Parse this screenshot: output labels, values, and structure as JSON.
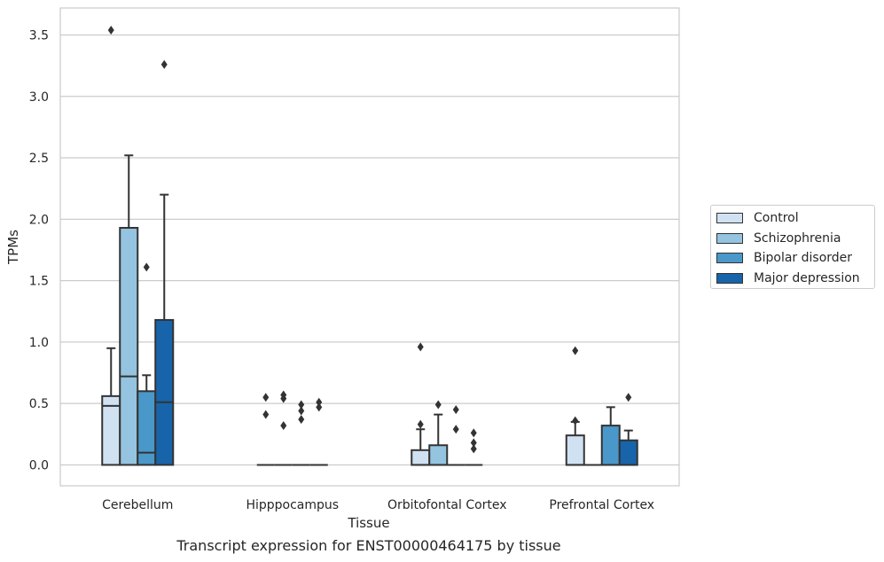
{
  "caption": "Transcript expression for ENST00000464175 by tissue",
  "chart_data": {
    "type": "boxplot",
    "xlabel": "Tissue",
    "ylabel": "TPMs",
    "ylim": [
      -0.17,
      3.72
    ],
    "yticks": [
      0.0,
      0.5,
      1.0,
      1.5,
      2.0,
      2.5,
      3.0,
      3.5
    ],
    "grid": "horizontal",
    "legend_position": "center-right outside",
    "categories": [
      "Cerebellum",
      "Hipppocampus",
      "Orbitofontal Cortex",
      "Prefrontal Cortex"
    ],
    "series": [
      {
        "name": "Control",
        "color": "#d0e1f2",
        "boxes": [
          {
            "q1": 0.0,
            "median": 0.48,
            "q3": 0.56,
            "whislo": 0.0,
            "whishi": 0.95,
            "fliers": [
              3.54
            ]
          },
          {
            "q1": 0.0,
            "median": 0.0,
            "q3": 0.0,
            "whislo": 0.0,
            "whishi": 0.0,
            "fliers": [
              0.41,
              0.55
            ]
          },
          {
            "q1": 0.0,
            "median": 0.0,
            "q3": 0.12,
            "whislo": 0.0,
            "whishi": 0.29,
            "fliers": [
              0.33,
              0.96
            ]
          },
          {
            "q1": 0.0,
            "median": 0.0,
            "q3": 0.24,
            "whislo": 0.0,
            "whishi": 0.35,
            "fliers": [
              0.36,
              0.93
            ]
          }
        ]
      },
      {
        "name": "Schizophrenia",
        "color": "#94c4df",
        "boxes": [
          {
            "q1": 0.0,
            "median": 0.72,
            "q3": 1.93,
            "whislo": 0.0,
            "whishi": 2.52,
            "fliers": []
          },
          {
            "q1": 0.0,
            "median": 0.0,
            "q3": 0.0,
            "whislo": 0.0,
            "whishi": 0.0,
            "fliers": [
              0.32,
              0.54,
              0.57
            ]
          },
          {
            "q1": 0.0,
            "median": 0.0,
            "q3": 0.16,
            "whislo": 0.0,
            "whishi": 0.41,
            "fliers": [
              0.49
            ]
          },
          {
            "q1": 0.0,
            "median": 0.0,
            "q3": 0.0,
            "whislo": 0.0,
            "whishi": 0.0,
            "fliers": []
          }
        ]
      },
      {
        "name": "Bipolar disorder",
        "color": "#4a98c9",
        "boxes": [
          {
            "q1": 0.0,
            "median": 0.1,
            "q3": 0.6,
            "whislo": 0.0,
            "whishi": 0.73,
            "fliers": [
              1.61
            ]
          },
          {
            "q1": 0.0,
            "median": 0.0,
            "q3": 0.0,
            "whislo": 0.0,
            "whishi": 0.0,
            "fliers": [
              0.37,
              0.44,
              0.49
            ]
          },
          {
            "q1": 0.0,
            "median": 0.0,
            "q3": 0.0,
            "whislo": 0.0,
            "whishi": 0.0,
            "fliers": [
              0.29,
              0.45
            ]
          },
          {
            "q1": 0.0,
            "median": 0.0,
            "q3": 0.32,
            "whislo": 0.0,
            "whishi": 0.47,
            "fliers": []
          }
        ]
      },
      {
        "name": "Major depression",
        "color": "#1764ab",
        "boxes": [
          {
            "q1": 0.0,
            "median": 0.51,
            "q3": 1.18,
            "whislo": 0.0,
            "whishi": 2.2,
            "fliers": [
              3.26
            ]
          },
          {
            "q1": 0.0,
            "median": 0.0,
            "q3": 0.0,
            "whislo": 0.0,
            "whishi": 0.0,
            "fliers": [
              0.47,
              0.51
            ]
          },
          {
            "q1": 0.0,
            "median": 0.0,
            "q3": 0.0,
            "whislo": 0.0,
            "whishi": 0.0,
            "fliers": [
              0.13,
              0.18,
              0.26
            ]
          },
          {
            "q1": 0.0,
            "median": 0.0,
            "q3": 0.2,
            "whislo": 0.0,
            "whishi": 0.28,
            "fliers": [
              0.55
            ]
          }
        ]
      }
    ]
  }
}
